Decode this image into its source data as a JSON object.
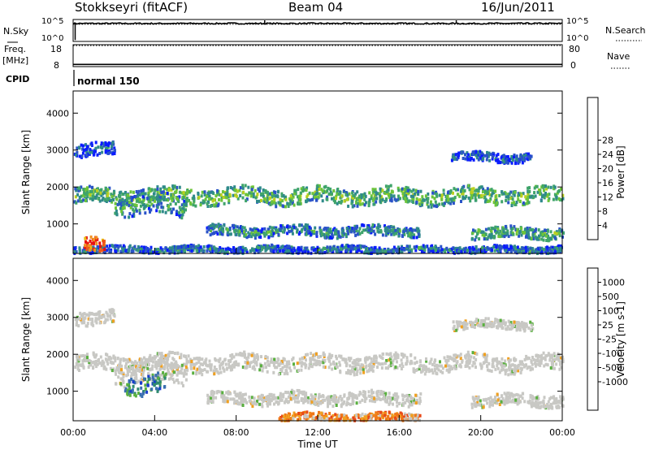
{
  "header": {
    "station": "Stokkseyri (fitACF)",
    "beam": "Beam 04",
    "date": "16/Jun/2011"
  },
  "chart_data": [
    {
      "type": "line",
      "panel": "noise",
      "left_label": "N.Sky",
      "right_label": "N.Search",
      "left_ticks": [
        "10^5",
        "10^0"
      ],
      "right_ticks": [
        "10^5",
        "10^0"
      ],
      "series": [
        {
          "name": "N.Sky",
          "style": "solid",
          "level": 0.82,
          "spikes": [
            {
              "t": 9.4,
              "v": 1.0
            },
            {
              "t": 18.8,
              "v": 1.0
            },
            {
              "t": 0.1,
              "v": 0.1
            }
          ]
        },
        {
          "name": "N.Search",
          "style": "dotted",
          "level": 0.78
        }
      ]
    },
    {
      "type": "line",
      "panel": "frequency",
      "left_label": "Freq.",
      "left_unit": "[MHz]",
      "right_label": "Nave",
      "left_ticks": [
        "18",
        "8"
      ],
      "right_ticks": [
        "80",
        "0"
      ],
      "series": [
        {
          "name": "Freq.",
          "style": "dotted",
          "value_mhz": 17.6
        },
        {
          "name": "Nave",
          "style": "solid",
          "value": 2
        }
      ]
    },
    {
      "type": "text",
      "panel": "cpid",
      "label": "CPID",
      "program": "normal 150"
    },
    {
      "type": "heatmap",
      "panel": "power",
      "ylabel": "Slant Range [km]",
      "y_ticks": [
        1000,
        2000,
        3000,
        4000
      ],
      "ylim": [
        200,
        4600
      ],
      "xlim": [
        0,
        24
      ],
      "colorbar": {
        "label": "Power [dB]",
        "ticks": [
          "4",
          "8",
          "12",
          "16",
          "20",
          "24",
          "28"
        ],
        "colors": [
          "#0a1cff",
          "#2a53c8",
          "#2f8a8a",
          "#3fa46a",
          "#6cc43a",
          "#b8d020",
          "#e8c010",
          "#f09020",
          "#f05818",
          "#e81010"
        ]
      },
      "echo_bands": [
        {
          "t0": 0.0,
          "t1": 24.0,
          "r": 1750,
          "w": 210,
          "level": 0.42
        },
        {
          "t0": 2.0,
          "t1": 5.5,
          "r": 1500,
          "w": 280,
          "level": 0.35
        },
        {
          "t0": 6.5,
          "t1": 17.0,
          "r": 800,
          "w": 140,
          "level": 0.3
        },
        {
          "t0": 19.5,
          "t1": 24.0,
          "r": 750,
          "w": 150,
          "level": 0.4
        },
        {
          "t0": 0.0,
          "t1": 24.0,
          "r": 300,
          "w": 90,
          "level": 0.25
        },
        {
          "t0": 0.0,
          "t1": 2.0,
          "r": 3000,
          "w": 180,
          "level": 0.2
        },
        {
          "t0": 18.5,
          "t1": 22.5,
          "r": 2800,
          "w": 120,
          "level": 0.2
        },
        {
          "t0": 0.5,
          "t1": 1.5,
          "r": 400,
          "w": 200,
          "level": 0.95
        }
      ]
    },
    {
      "type": "heatmap",
      "panel": "velocity",
      "xlabel": "Time UT",
      "ylabel": "Slant Range [km]",
      "y_ticks": [
        1000,
        2000,
        3000,
        4000
      ],
      "x_ticks": [
        "00:00",
        "04:00",
        "08:00",
        "12:00",
        "16:00",
        "20:00",
        "00:00"
      ],
      "ylim": [
        200,
        4600
      ],
      "xlim": [
        0,
        24
      ],
      "colorbar": {
        "label": "Velocity [m s-1]",
        "ticks": [
          "1000",
          "500",
          "100",
          "25",
          "-25",
          "-100",
          "-500",
          "-1000"
        ],
        "colors": [
          "#1a3ccc",
          "#3a70b0",
          "#2f8a70",
          "#5ab040",
          "#c8c8c4",
          "#c8c8c4",
          "#f0a020",
          "#f07818",
          "#e84818",
          "#e81010"
        ]
      },
      "echo_bands": [
        {
          "t0": 0.0,
          "t1": 24.0,
          "r": 1750,
          "w": 220,
          "level": 0.5
        },
        {
          "t0": 2.0,
          "t1": 5.5,
          "r": 1500,
          "w": 300,
          "level": 0.5
        },
        {
          "t0": 6.5,
          "t1": 17.0,
          "r": 800,
          "w": 160,
          "level": 0.5
        },
        {
          "t0": 19.5,
          "t1": 24.0,
          "r": 750,
          "w": 160,
          "level": 0.5
        },
        {
          "t0": 0.0,
          "t1": 2.0,
          "r": 3000,
          "w": 180,
          "level": 0.5
        },
        {
          "t0": 18.5,
          "t1": 22.5,
          "r": 2800,
          "w": 120,
          "level": 0.5
        },
        {
          "t0": 2.5,
          "t1": 4.5,
          "r": 1200,
          "w": 260,
          "level": 0.2
        },
        {
          "t0": 10.0,
          "t1": 17.0,
          "r": 300,
          "w": 100,
          "level": 0.7
        }
      ]
    }
  ]
}
